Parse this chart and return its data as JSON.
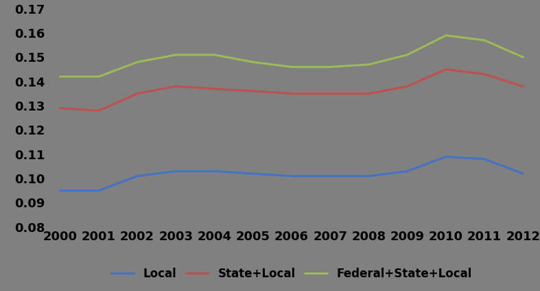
{
  "years": [
    2000,
    2001,
    2002,
    2003,
    2004,
    2005,
    2006,
    2007,
    2008,
    2009,
    2010,
    2011,
    2012
  ],
  "local": [
    0.095,
    0.095,
    0.101,
    0.103,
    0.103,
    0.102,
    0.101,
    0.101,
    0.101,
    0.103,
    0.109,
    0.108,
    0.102
  ],
  "state_local": [
    0.129,
    0.128,
    0.135,
    0.138,
    0.137,
    0.136,
    0.135,
    0.135,
    0.135,
    0.138,
    0.145,
    0.143,
    0.138
  ],
  "federal_state_local": [
    0.142,
    0.142,
    0.148,
    0.151,
    0.151,
    0.148,
    0.146,
    0.146,
    0.147,
    0.151,
    0.159,
    0.157,
    0.15
  ],
  "local_color": "#4472C4",
  "state_local_color": "#C0504D",
  "federal_state_local_color": "#9BBB59",
  "background_color": "#808080",
  "ylim": [
    0.08,
    0.17
  ],
  "ytick_vals": [
    0.08,
    0.09,
    0.1,
    0.11,
    0.12,
    0.13,
    0.14,
    0.15,
    0.16,
    0.17
  ],
  "ytick_labels": [
    "0.08",
    "0.09",
    "0.10",
    "0.11",
    "0.12",
    "0.13",
    "0.14",
    "0.15",
    "0.16",
    "0.17"
  ],
  "legend_labels": [
    "Local",
    "State+Local",
    "Federal+State+Local"
  ],
  "line_width": 2.2,
  "tick_fontsize": 13,
  "legend_fontsize": 12,
  "font_weight": "bold"
}
